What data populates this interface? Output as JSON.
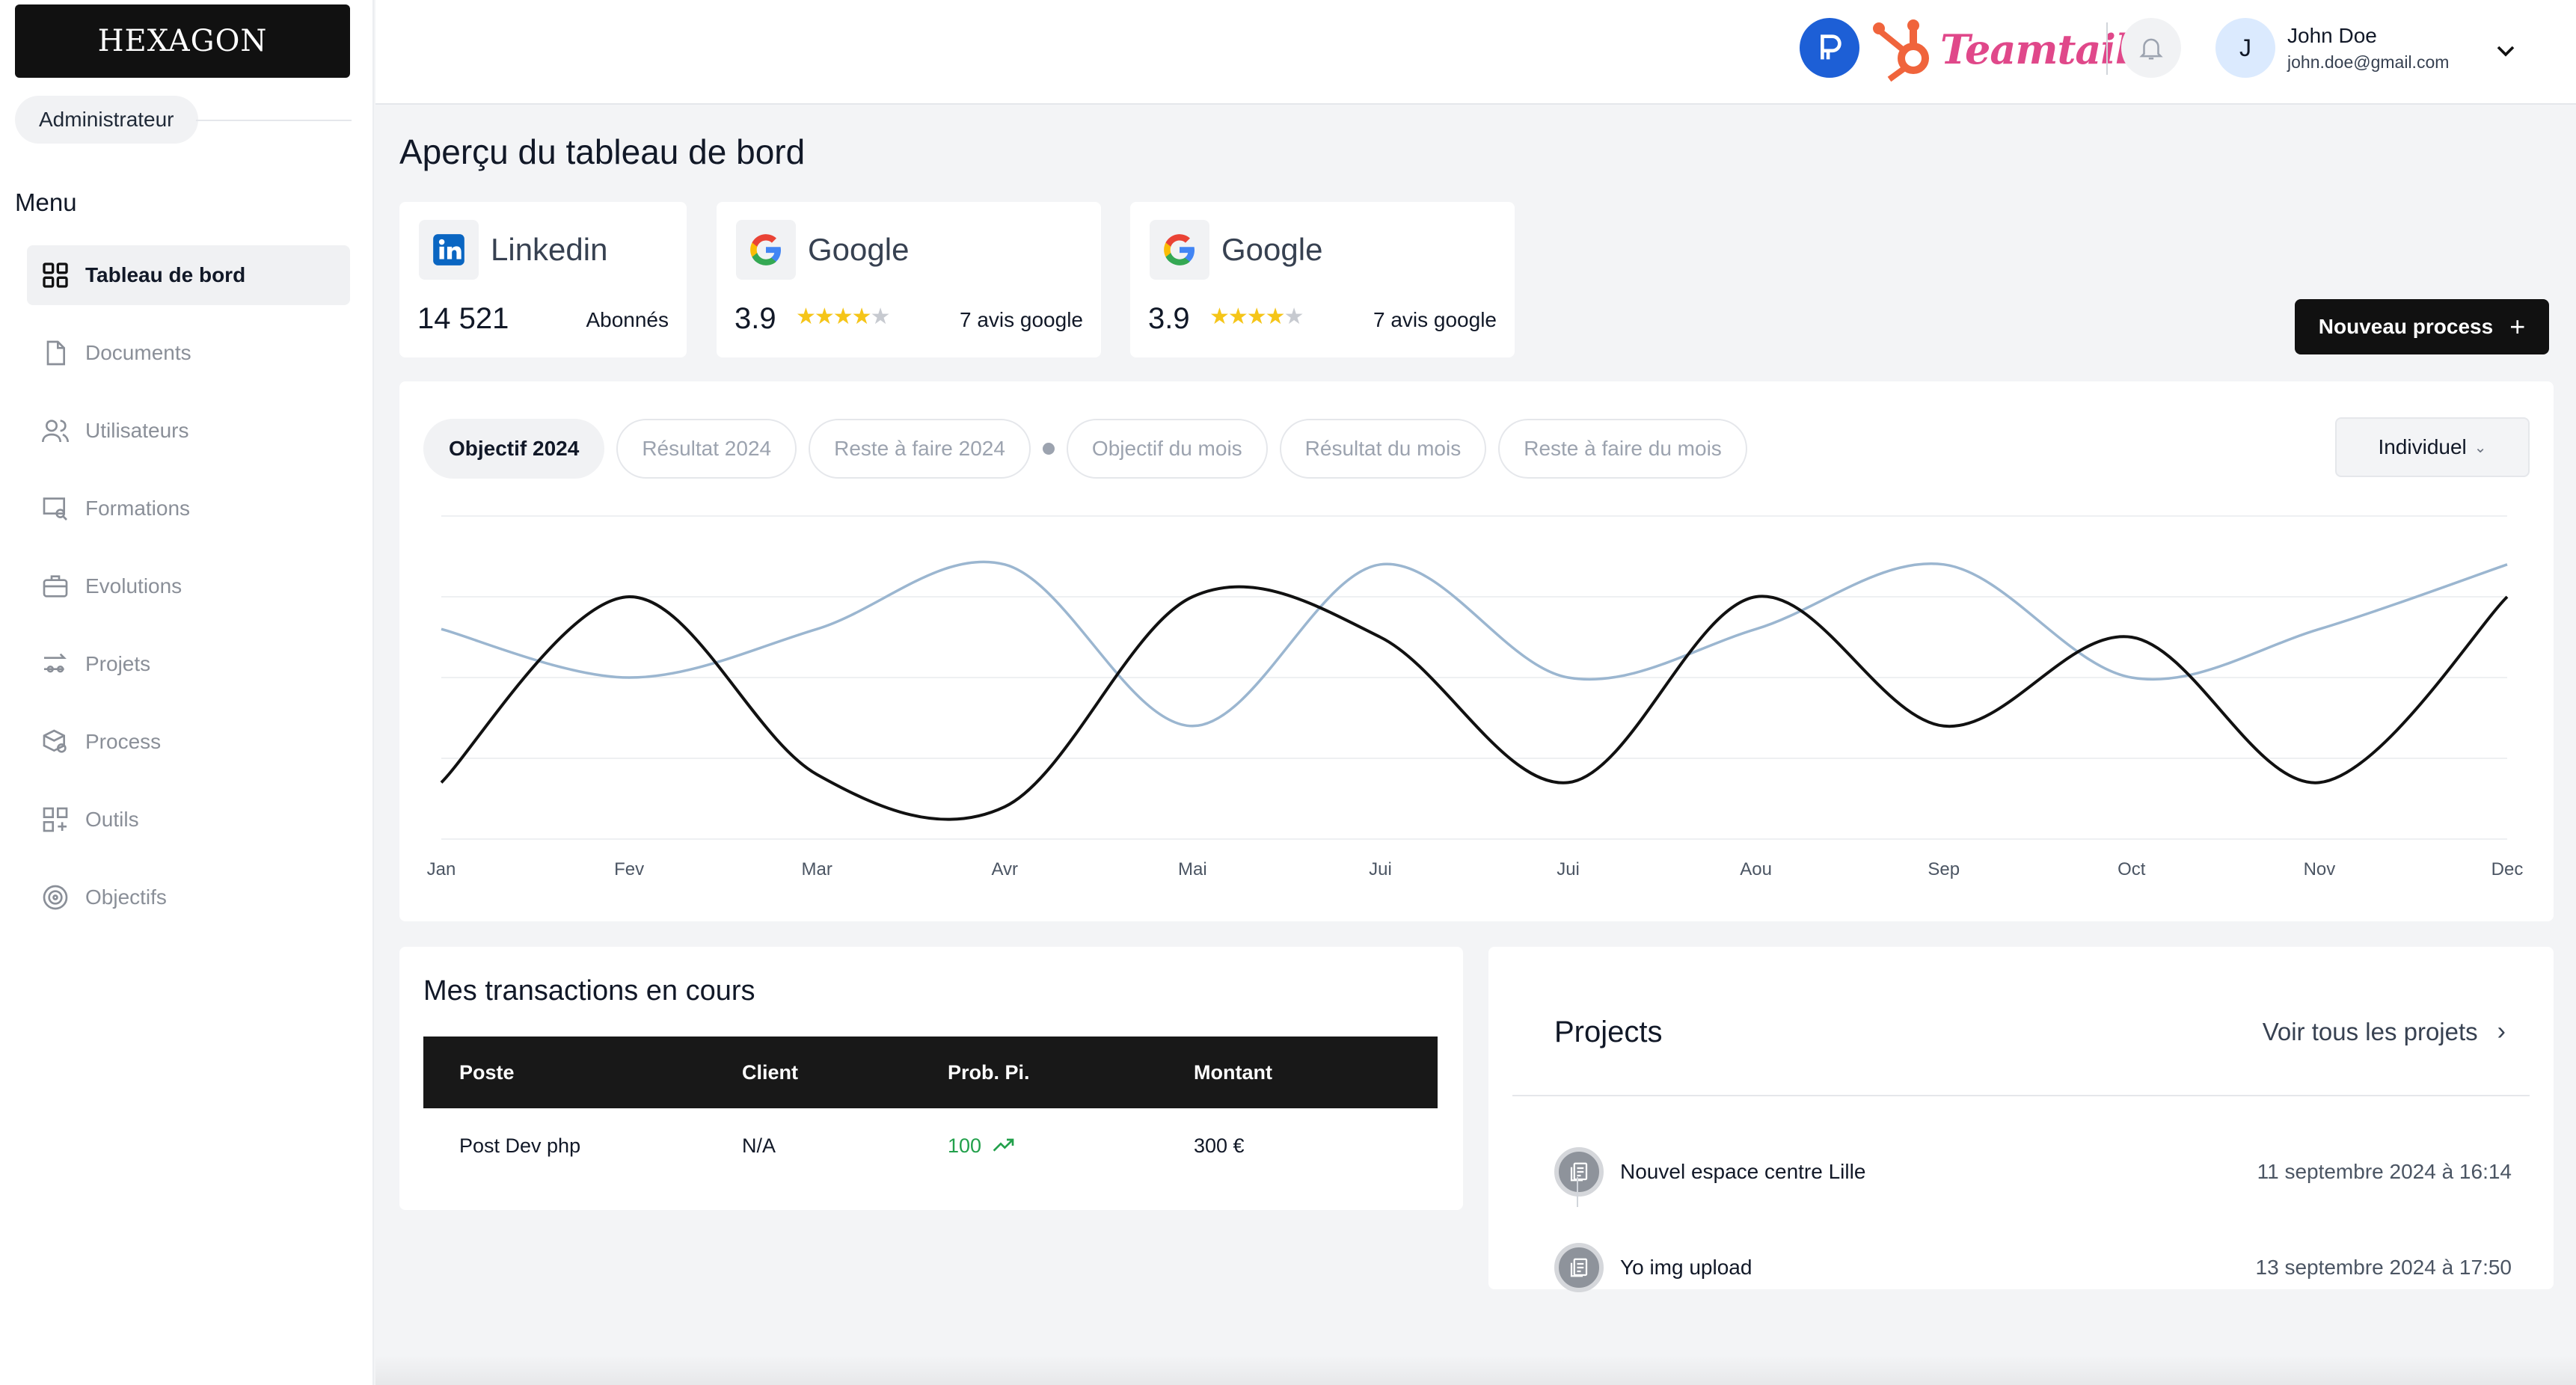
{
  "app": {
    "logo_text": "HEXAGON",
    "role": "Administrateur"
  },
  "sidebar": {
    "menu_title": "Menu",
    "items": [
      {
        "label": "Tableau de bord",
        "icon": "dashboard-grid-icon",
        "active": true
      },
      {
        "label": "Documents",
        "icon": "document-icon"
      },
      {
        "label": "Utilisateurs",
        "icon": "users-icon"
      },
      {
        "label": "Formations",
        "icon": "training-screen-icon"
      },
      {
        "label": "Evolutions",
        "icon": "briefcase-icon"
      },
      {
        "label": "Projets",
        "icon": "projects-flow-icon"
      },
      {
        "label": "Process",
        "icon": "box-search-icon"
      },
      {
        "label": "Outils",
        "icon": "tools-grid-icon"
      },
      {
        "label": "Objectifs",
        "icon": "target-icon"
      }
    ]
  },
  "header": {
    "integrations": [
      "p-logo",
      "hubspot-logo",
      "Teamtailor"
    ],
    "teamtailor_text": "Teamtailor",
    "user": {
      "initial": "J",
      "name": "John Doe",
      "email": "john.doe@gmail.com"
    }
  },
  "page": {
    "title": "Aperçu du tableau de bord"
  },
  "stats": [
    {
      "brand": "Linkedin",
      "value": "14 521",
      "sub": "Abonnés"
    },
    {
      "brand": "Google",
      "value": "3.9",
      "rating": 3.9,
      "sub": "7 avis google"
    },
    {
      "brand": "Google",
      "value": "3.9",
      "rating": 3.9,
      "sub": "7 avis google"
    }
  ],
  "new_process_button": "Nouveau process",
  "chart": {
    "tabs": [
      "Objectif 2024",
      "Résultat 2024",
      "Reste à faire 2024",
      "Objectif du mois",
      "Résultat du mois",
      "Reste à faire du mois"
    ],
    "active_tab": 0,
    "dropdown": "Individuel",
    "colors": {
      "dark_series": "#111111",
      "light_series": "#9bb6d0"
    }
  },
  "chart_data": {
    "type": "line",
    "categories": [
      "Jan",
      "Fev",
      "Mar",
      "Avr",
      "Mai",
      "Jui",
      "Jui",
      "Aou",
      "Sep",
      "Oct",
      "Nov",
      "Dec"
    ],
    "ylim": [
      0,
      4
    ],
    "grid": true,
    "series": [
      {
        "values": [
          0.7,
          3.0,
          0.8,
          0.4,
          3.0,
          2.5,
          0.7,
          3.0,
          1.4,
          2.5,
          0.7,
          3.0
        ]
      },
      {
        "values": [
          2.6,
          2.0,
          2.6,
          3.4,
          1.4,
          3.4,
          2.0,
          2.6,
          3.4,
          2.0,
          2.6,
          3.4
        ]
      }
    ]
  },
  "transactions": {
    "title": "Mes transactions en cours",
    "columns": [
      "Poste",
      "Client",
      "Prob. Pi.",
      "Montant"
    ],
    "rows": [
      {
        "poste": "Post Dev php",
        "client": "N/A",
        "prob": "100",
        "montant": "300 €"
      }
    ]
  },
  "projects": {
    "title": "Projects",
    "link": "Voir tous les projets",
    "items": [
      {
        "name": "Nouvel espace centre Lille",
        "date": "11 septembre 2024 à 16:14"
      },
      {
        "name": "Yo img upload",
        "date": "13 septembre 2024 à 17:50"
      }
    ]
  }
}
